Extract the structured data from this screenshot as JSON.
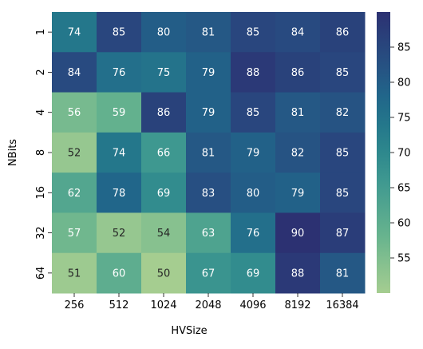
{
  "chart_data": {
    "type": "heatmap",
    "xlabel": "HVSize",
    "ylabel": "NBits",
    "x_categories": [
      "256",
      "512",
      "1024",
      "2048",
      "4096",
      "8192",
      "16384"
    ],
    "y_categories": [
      "1",
      "2",
      "4",
      "8",
      "16",
      "32",
      "64"
    ],
    "values": [
      [
        74,
        85,
        80,
        81,
        85,
        84,
        86
      ],
      [
        84,
        76,
        75,
        79,
        88,
        86,
        85
      ],
      [
        56,
        59,
        86,
        79,
        85,
        81,
        82
      ],
      [
        52,
        74,
        66,
        81,
        79,
        82,
        85
      ],
      [
        62,
        78,
        69,
        83,
        80,
        79,
        85
      ],
      [
        57,
        52,
        54,
        63,
        76,
        90,
        87
      ],
      [
        51,
        60,
        50,
        67,
        69,
        88,
        81
      ]
    ],
    "colorbar": {
      "range": [
        50,
        90
      ],
      "ticks": [
        55,
        60,
        65,
        70,
        75,
        80,
        85
      ],
      "colormap": "crest",
      "color_low": "#a5cd90",
      "color_high": "#2c3172"
    },
    "annotation_dark_text_below": 54
  }
}
